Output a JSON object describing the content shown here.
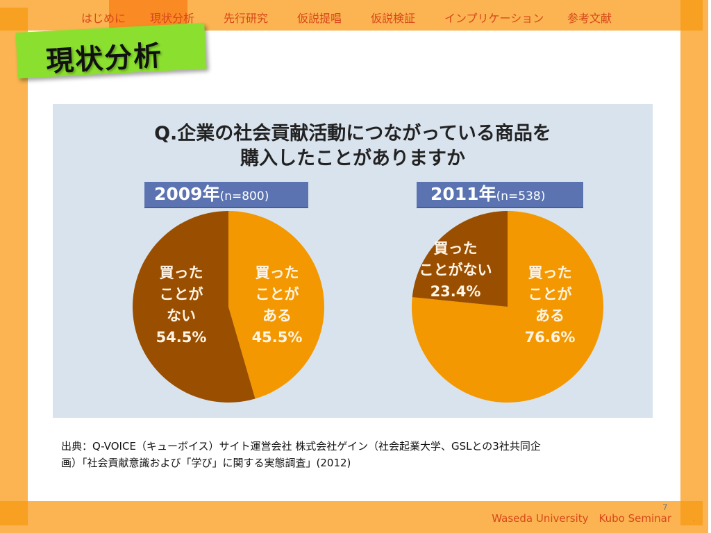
{
  "nav": {
    "items": [
      {
        "label": "はじめに"
      },
      {
        "label": "現状分析",
        "active": true
      },
      {
        "label": "先行研究"
      },
      {
        "label": "仮説提唱"
      },
      {
        "label": "仮説検証"
      },
      {
        "label": "インプリケーション"
      },
      {
        "label": "参考文献"
      }
    ]
  },
  "slide": {
    "title": "現状分析",
    "source_line1": "出典：Q-VOICE（キューボイス）サイト運営会社 株式会社ゲイン（社会起業大学、GSLとの3社共同企",
    "source_line2": "画）「社会貢献意識および「学び」に関する実態調査」(2012)",
    "footer": "Waseda University　Kubo Seminar",
    "page_number": "7",
    "footer_mark": "."
  },
  "colors": {
    "band": "#FBB451",
    "band_dark": "#F7A021",
    "nav_active": "#F98A24",
    "nav_text": "#D8471A",
    "title_label": "#8BE02F",
    "chart_bg": "#D9E3EE",
    "tag_bg": "#5B74B1",
    "bought": "#F39800",
    "not_bought": "#9A4E00"
  },
  "chart_data": [
    {
      "type": "pie",
      "title": "Q.企業の社会貢献活動につながっている商品を購入したことがありますか",
      "title_line1": "Q.企業の社会貢献活動につながっている商品を",
      "title_line2": "購入したことがありますか",
      "year_label": "2009年",
      "n_label": "(n=800)",
      "slices": [
        {
          "label": "買ったことがある",
          "label_lines": [
            "買った",
            "ことが",
            "ある"
          ],
          "value": 45.5,
          "value_label": "45.5%",
          "color": "#F39800"
        },
        {
          "label": "買ったことがない",
          "label_lines": [
            "買った",
            "ことが",
            "ない"
          ],
          "value": 54.5,
          "value_label": "54.5%",
          "color": "#9A4E00"
        }
      ]
    },
    {
      "type": "pie",
      "title": "Q.企業の社会貢献活動につながっている商品を購入したことがありますか",
      "year_label": "2011年",
      "n_label": "(n=538)",
      "slices": [
        {
          "label": "買ったことがある",
          "label_lines": [
            "買った",
            "ことが",
            "ある"
          ],
          "value": 76.6,
          "value_label": "76.6%",
          "color": "#F39800"
        },
        {
          "label": "買ったことがない",
          "label_lines": [
            "買った",
            "ことがない"
          ],
          "value": 23.4,
          "value_label": "23.4%",
          "color": "#9A4E00"
        }
      ]
    }
  ]
}
